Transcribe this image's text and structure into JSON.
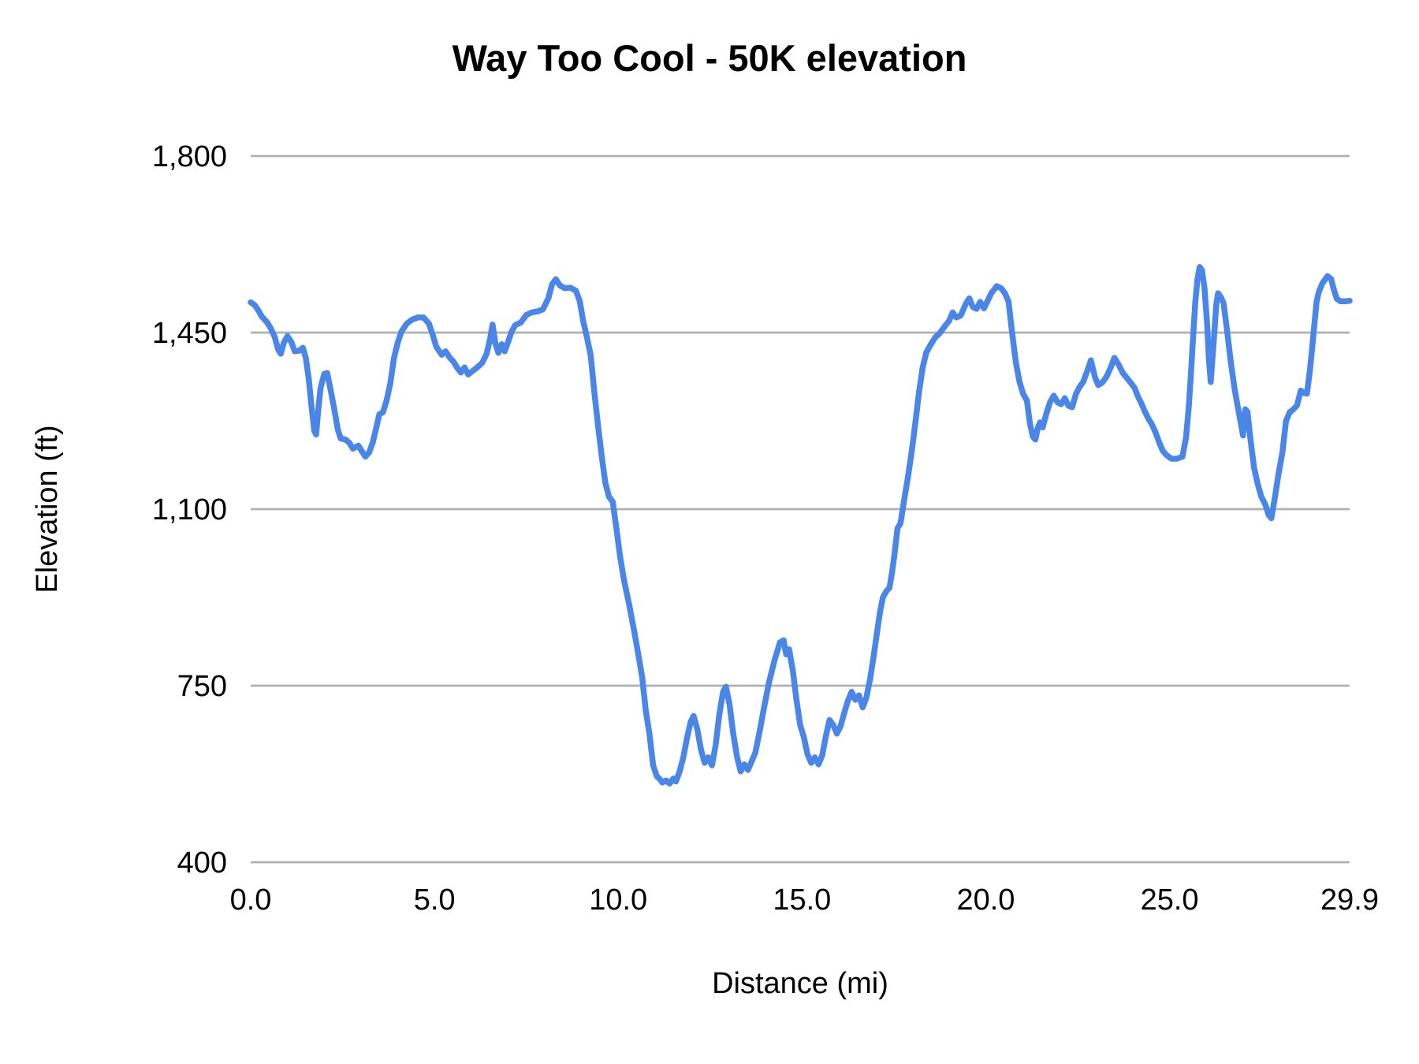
{
  "chart_data": {
    "type": "line",
    "title": "Way Too Cool - 50K elevation",
    "xlabel": "Distance (mi)",
    "ylabel": "Elevation (ft)",
    "xlim": [
      0,
      29.9
    ],
    "ylim": [
      400,
      1800
    ],
    "grid": true,
    "legend": "none",
    "x_ticks": [
      {
        "value": 0,
        "label": "0.0"
      },
      {
        "value": 5,
        "label": "5.0"
      },
      {
        "value": 10,
        "label": "10.0"
      },
      {
        "value": 15,
        "label": "15.0"
      },
      {
        "value": 20,
        "label": "20.0"
      },
      {
        "value": 25,
        "label": "25.0"
      },
      {
        "value": 29.9,
        "label": "29.9"
      }
    ],
    "y_ticks": [
      {
        "value": 400,
        "label": "400"
      },
      {
        "value": 750,
        "label": "750"
      },
      {
        "value": 1100,
        "label": "1,100"
      },
      {
        "value": 1450,
        "label": "1,450"
      },
      {
        "value": 1800,
        "label": "1,800"
      }
    ],
    "series": [
      {
        "name": "Elevation",
        "color": "#4a86e8",
        "points": [
          [
            0,
            1510
          ],
          [
            0.1,
            1505
          ],
          [
            0.2,
            1495
          ],
          [
            0.3,
            1482
          ],
          [
            0.45,
            1470
          ],
          [
            0.55,
            1458
          ],
          [
            0.65,
            1442
          ],
          [
            0.75,
            1416
          ],
          [
            0.82,
            1408
          ],
          [
            0.9,
            1430
          ],
          [
            1,
            1443
          ],
          [
            1.1,
            1432
          ],
          [
            1.2,
            1413
          ],
          [
            1.32,
            1414
          ],
          [
            1.42,
            1420
          ],
          [
            1.5,
            1400
          ],
          [
            1.58,
            1358
          ],
          [
            1.66,
            1300
          ],
          [
            1.73,
            1255
          ],
          [
            1.78,
            1248
          ],
          [
            1.83,
            1290
          ],
          [
            1.9,
            1340
          ],
          [
            2,
            1368
          ],
          [
            2.08,
            1370
          ],
          [
            2.17,
            1338
          ],
          [
            2.27,
            1300
          ],
          [
            2.37,
            1258
          ],
          [
            2.45,
            1240
          ],
          [
            2.58,
            1238
          ],
          [
            2.68,
            1232
          ],
          [
            2.78,
            1220
          ],
          [
            2.93,
            1226
          ],
          [
            3.03,
            1214
          ],
          [
            3.12,
            1204
          ],
          [
            3.22,
            1212
          ],
          [
            3.32,
            1232
          ],
          [
            3.42,
            1262
          ],
          [
            3.5,
            1288
          ],
          [
            3.6,
            1292
          ],
          [
            3.7,
            1316
          ],
          [
            3.8,
            1350
          ],
          [
            3.9,
            1400
          ],
          [
            4,
            1430
          ],
          [
            4.1,
            1452
          ],
          [
            4.25,
            1468
          ],
          [
            4.4,
            1476
          ],
          [
            4.55,
            1480
          ],
          [
            4.7,
            1480
          ],
          [
            4.85,
            1468
          ],
          [
            4.95,
            1446
          ],
          [
            5.05,
            1422
          ],
          [
            5.2,
            1406
          ],
          [
            5.3,
            1413
          ],
          [
            5.42,
            1400
          ],
          [
            5.52,
            1392
          ],
          [
            5.62,
            1380
          ],
          [
            5.72,
            1371
          ],
          [
            5.82,
            1381
          ],
          [
            5.92,
            1367
          ],
          [
            6.02,
            1373
          ],
          [
            6.15,
            1380
          ],
          [
            6.3,
            1390
          ],
          [
            6.42,
            1408
          ],
          [
            6.52,
            1440
          ],
          [
            6.58,
            1466
          ],
          [
            6.66,
            1428
          ],
          [
            6.74,
            1410
          ],
          [
            6.83,
            1427
          ],
          [
            6.91,
            1413
          ],
          [
            7,
            1431
          ],
          [
            7.1,
            1452
          ],
          [
            7.2,
            1465
          ],
          [
            7.35,
            1470
          ],
          [
            7.5,
            1485
          ],
          [
            7.65,
            1490
          ],
          [
            7.8,
            1492
          ],
          [
            7.95,
            1496
          ],
          [
            8.1,
            1518
          ],
          [
            8.2,
            1546
          ],
          [
            8.3,
            1556
          ],
          [
            8.42,
            1543
          ],
          [
            8.55,
            1538
          ],
          [
            8.7,
            1539
          ],
          [
            8.85,
            1533
          ],
          [
            8.95,
            1513
          ],
          [
            9.05,
            1472
          ],
          [
            9.15,
            1440
          ],
          [
            9.25,
            1405
          ],
          [
            9.35,
            1332
          ],
          [
            9.45,
            1266
          ],
          [
            9.55,
            1206
          ],
          [
            9.65,
            1152
          ],
          [
            9.75,
            1124
          ],
          [
            9.85,
            1115
          ],
          [
            9.95,
            1062
          ],
          [
            10.05,
            1006
          ],
          [
            10.15,
            962
          ],
          [
            10.3,
            910
          ],
          [
            10.45,
            852
          ],
          [
            10.55,
            810
          ],
          [
            10.65,
            768
          ],
          [
            10.75,
            700
          ],
          [
            10.85,
            655
          ],
          [
            10.95,
            592
          ],
          [
            11.05,
            570
          ],
          [
            11.12,
            566
          ],
          [
            11.2,
            558
          ],
          [
            11.3,
            562
          ],
          [
            11.4,
            556
          ],
          [
            11.5,
            566
          ],
          [
            11.57,
            560
          ],
          [
            11.67,
            580
          ],
          [
            11.77,
            607
          ],
          [
            11.87,
            646
          ],
          [
            11.97,
            678
          ],
          [
            12.05,
            690
          ],
          [
            12.15,
            664
          ],
          [
            12.25,
            624
          ],
          [
            12.35,
            597
          ],
          [
            12.45,
            608
          ],
          [
            12.55,
            592
          ],
          [
            12.65,
            632
          ],
          [
            12.75,
            692
          ],
          [
            12.85,
            737
          ],
          [
            12.93,
            748
          ],
          [
            13.03,
            712
          ],
          [
            13.13,
            655
          ],
          [
            13.23,
            610
          ],
          [
            13.33,
            580
          ],
          [
            13.43,
            594
          ],
          [
            13.53,
            583
          ],
          [
            13.63,
            600
          ],
          [
            13.73,
            617
          ],
          [
            13.85,
            660
          ],
          [
            13.95,
            700
          ],
          [
            14.1,
            756
          ],
          [
            14.25,
            800
          ],
          [
            14.4,
            836
          ],
          [
            14.5,
            840
          ],
          [
            14.57,
            812
          ],
          [
            14.65,
            822
          ],
          [
            14.75,
            780
          ],
          [
            14.85,
            722
          ],
          [
            14.95,
            672
          ],
          [
            15.05,
            648
          ],
          [
            15.15,
            614
          ],
          [
            15.25,
            597
          ],
          [
            15.35,
            608
          ],
          [
            15.45,
            594
          ],
          [
            15.55,
            612
          ],
          [
            15.65,
            650
          ],
          [
            15.75,
            682
          ],
          [
            15.85,
            672
          ],
          [
            15.95,
            655
          ],
          [
            16.05,
            670
          ],
          [
            16.15,
            696
          ],
          [
            16.25,
            720
          ],
          [
            16.35,
            738
          ],
          [
            16.45,
            722
          ],
          [
            16.55,
            731
          ],
          [
            16.65,
            707
          ],
          [
            16.75,
            726
          ],
          [
            16.85,
            762
          ],
          [
            16.95,
            808
          ],
          [
            17.05,
            860
          ],
          [
            17.12,
            895
          ],
          [
            17.2,
            925
          ],
          [
            17.3,
            938
          ],
          [
            17.38,
            944
          ],
          [
            17.45,
            975
          ],
          [
            17.52,
            1012
          ],
          [
            17.6,
            1062
          ],
          [
            17.68,
            1072
          ],
          [
            17.78,
            1118
          ],
          [
            17.88,
            1162
          ],
          [
            17.98,
            1212
          ],
          [
            18.08,
            1268
          ],
          [
            18.18,
            1330
          ],
          [
            18.28,
            1380
          ],
          [
            18.38,
            1410
          ],
          [
            18.5,
            1426
          ],
          [
            18.62,
            1440
          ],
          [
            18.75,
            1449
          ],
          [
            18.9,
            1464
          ],
          [
            19,
            1473
          ],
          [
            19.1,
            1490
          ],
          [
            19.2,
            1480
          ],
          [
            19.32,
            1484
          ],
          [
            19.45,
            1506
          ],
          [
            19.55,
            1518
          ],
          [
            19.65,
            1501
          ],
          [
            19.75,
            1497
          ],
          [
            19.85,
            1511
          ],
          [
            19.95,
            1498
          ],
          [
            20.05,
            1513
          ],
          [
            20.15,
            1528
          ],
          [
            20.3,
            1542
          ],
          [
            20.42,
            1538
          ],
          [
            20.52,
            1528
          ],
          [
            20.62,
            1512
          ],
          [
            20.72,
            1448
          ],
          [
            20.82,
            1390
          ],
          [
            20.92,
            1352
          ],
          [
            21.02,
            1328
          ],
          [
            21.12,
            1315
          ],
          [
            21.2,
            1270
          ],
          [
            21.28,
            1244
          ],
          [
            21.35,
            1238
          ],
          [
            21.42,
            1262
          ],
          [
            21.48,
            1272
          ],
          [
            21.55,
            1262
          ],
          [
            21.65,
            1290
          ],
          [
            21.75,
            1312
          ],
          [
            21.85,
            1325
          ],
          [
            21.95,
            1312
          ],
          [
            22.05,
            1308
          ],
          [
            22.15,
            1320
          ],
          [
            22.25,
            1305
          ],
          [
            22.35,
            1302
          ],
          [
            22.45,
            1328
          ],
          [
            22.55,
            1342
          ],
          [
            22.65,
            1352
          ],
          [
            22.75,
            1372
          ],
          [
            22.86,
            1395
          ],
          [
            22.97,
            1362
          ],
          [
            23.06,
            1346
          ],
          [
            23.17,
            1351
          ],
          [
            23.28,
            1362
          ],
          [
            23.4,
            1381
          ],
          [
            23.5,
            1400
          ],
          [
            23.62,
            1386
          ],
          [
            23.73,
            1370
          ],
          [
            23.84,
            1360
          ],
          [
            23.95,
            1350
          ],
          [
            24.05,
            1340
          ],
          [
            24.13,
            1325
          ],
          [
            24.23,
            1310
          ],
          [
            24.32,
            1295
          ],
          [
            24.42,
            1280
          ],
          [
            24.52,
            1268
          ],
          [
            24.62,
            1252
          ],
          [
            24.72,
            1232
          ],
          [
            24.82,
            1215
          ],
          [
            24.92,
            1207
          ],
          [
            25.05,
            1200
          ],
          [
            25.2,
            1200
          ],
          [
            25.35,
            1204
          ],
          [
            25.45,
            1242
          ],
          [
            25.52,
            1300
          ],
          [
            25.58,
            1365
          ],
          [
            25.64,
            1440
          ],
          [
            25.7,
            1510
          ],
          [
            25.76,
            1556
          ],
          [
            25.82,
            1580
          ],
          [
            25.88,
            1574
          ],
          [
            25.95,
            1540
          ],
          [
            26.02,
            1470
          ],
          [
            26.07,
            1400
          ],
          [
            26.12,
            1352
          ],
          [
            26.2,
            1430
          ],
          [
            26.27,
            1505
          ],
          [
            26.32,
            1528
          ],
          [
            26.4,
            1520
          ],
          [
            26.47,
            1508
          ],
          [
            26.57,
            1452
          ],
          [
            26.67,
            1390
          ],
          [
            26.77,
            1338
          ],
          [
            26.9,
            1286
          ],
          [
            27,
            1246
          ],
          [
            27.06,
            1298
          ],
          [
            27.12,
            1293
          ],
          [
            27.2,
            1240
          ],
          [
            27.3,
            1182
          ],
          [
            27.4,
            1150
          ],
          [
            27.5,
            1124
          ],
          [
            27.6,
            1110
          ],
          [
            27.7,
            1088
          ],
          [
            27.77,
            1082
          ],
          [
            27.87,
            1125
          ],
          [
            27.97,
            1172
          ],
          [
            28.07,
            1212
          ],
          [
            28.17,
            1275
          ],
          [
            28.27,
            1292
          ],
          [
            28.37,
            1298
          ],
          [
            28.47,
            1306
          ],
          [
            28.57,
            1335
          ],
          [
            28.67,
            1330
          ],
          [
            28.74,
            1329
          ],
          [
            28.82,
            1375
          ],
          [
            28.88,
            1418
          ],
          [
            28.94,
            1465
          ],
          [
            29,
            1510
          ],
          [
            29.06,
            1530
          ],
          [
            29.16,
            1548
          ],
          [
            29.3,
            1562
          ],
          [
            29.4,
            1556
          ],
          [
            29.46,
            1538
          ],
          [
            29.55,
            1517
          ],
          [
            29.65,
            1512
          ],
          [
            29.78,
            1512
          ],
          [
            29.9,
            1513
          ]
        ]
      }
    ]
  },
  "styles": {
    "line_color": "#4a86e8",
    "gridline_color": "#b0b0b0",
    "text_color": "#000000",
    "background_color": "#ffffff"
  }
}
